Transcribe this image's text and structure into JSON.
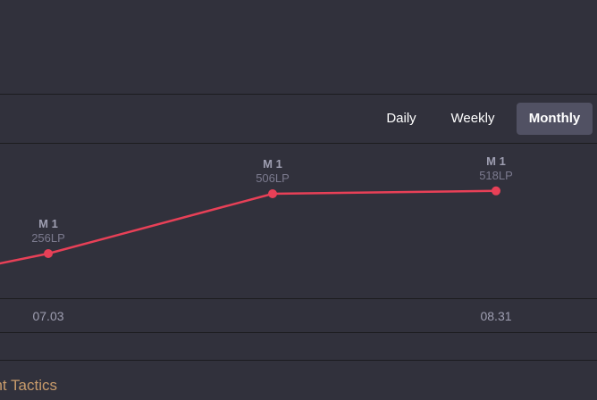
{
  "tabs": [
    {
      "label": "Daily",
      "active": false
    },
    {
      "label": "Weekly",
      "active": false
    },
    {
      "label": "Monthly",
      "active": true
    }
  ],
  "chart_data": {
    "type": "line",
    "x": [
      "07.03",
      "",
      "08.31"
    ],
    "series": [
      {
        "values": [
          256,
          506,
          518
        ],
        "tier_labels": [
          "M 1",
          "M 1",
          "M 1"
        ],
        "value_labels": [
          "256LP",
          "506LP",
          "518LP"
        ]
      }
    ],
    "xlabel": "",
    "ylabel": "",
    "line_color": "#e84057",
    "ylim": [
      0,
      700
    ],
    "grid": false
  },
  "footer": {
    "text": "ght Tactics"
  },
  "colors": {
    "background": "#31313c",
    "divider": "#1c1c1f",
    "active_tab": "#515163",
    "line": "#e84057",
    "footer_text": "#c89b6b"
  }
}
